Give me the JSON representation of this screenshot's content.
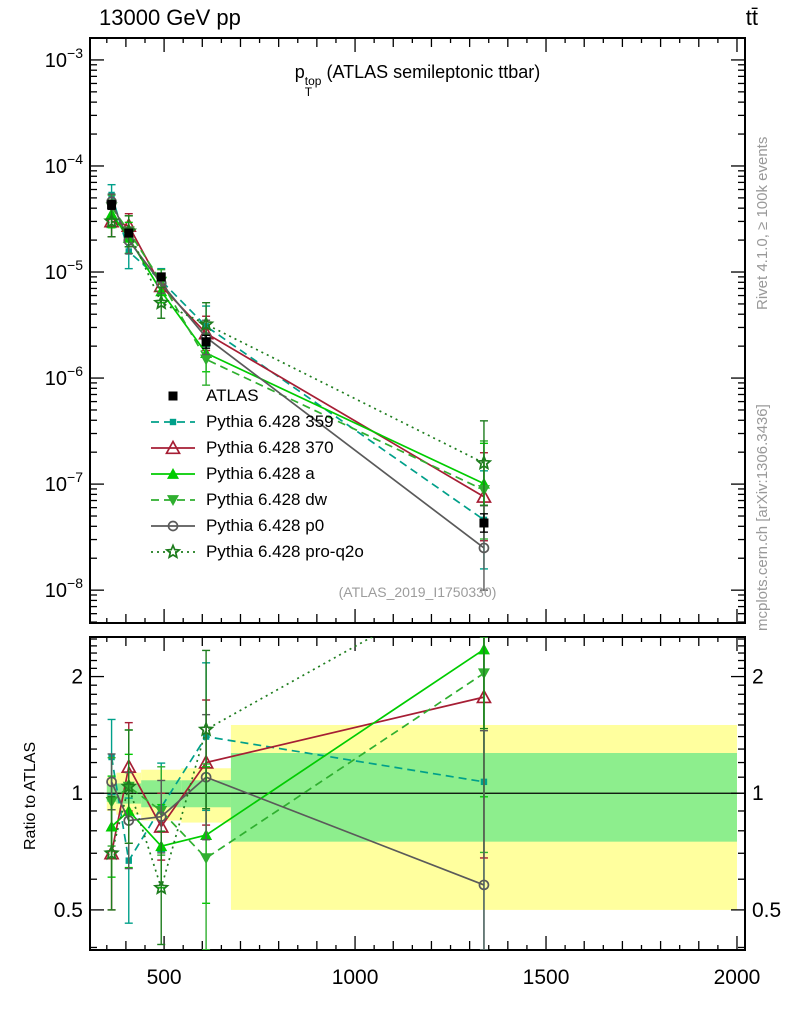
{
  "header": {
    "beam": "13000 GeV pp",
    "process": "tt̄"
  },
  "plot_title": {
    "p": "p",
    "sup": "top",
    "sub": "T",
    "rest": " (ATLAS semileptonic ttbar)"
  },
  "watermark": "(ATLAS_2019_I1750330)",
  "credits": {
    "rivet": "Rivet 4.1.0, ≥ 100k events",
    "mcplots": "mcplots.cern.ch [arXiv:1306.3436]"
  },
  "chart_data": {
    "type": "line",
    "title": "p_T^top (ATLAS semileptonic ttbar)",
    "xlabel": "",
    "x_scale": "linear",
    "xlim": [
      306,
      2021
    ],
    "x_ticks": [
      500,
      1000,
      1500,
      2000
    ],
    "main": {
      "scale": "log",
      "ylim": [
        4.9e-09,
        0.00161
      ],
      "ytick_exponents": [
        -3,
        -4,
        -5,
        -6,
        -7,
        -8
      ]
    },
    "ratio": {
      "scale": "log",
      "ylim": [
        0.394,
        2.53
      ],
      "yticks": [
        2,
        1,
        0.5
      ],
      "ylabel": "Ratio to ATLAS"
    },
    "bin_edges": [
      350,
      375,
      440,
      545,
      675,
      2000
    ],
    "x": [
      362.5,
      407.5,
      492.5,
      610,
      1337.5
    ],
    "bands": {
      "colors": {
        "yellow": "#ffff9e",
        "green": "#8dee8d"
      },
      "yellow": [
        [
          0.9,
          1.1
        ],
        [
          0.88,
          1.13
        ],
        [
          0.85,
          1.15
        ],
        [
          0.84,
          1.16
        ],
        [
          0.5,
          1.5
        ]
      ],
      "green": [
        [
          0.95,
          1.05
        ],
        [
          0.94,
          1.06
        ],
        [
          0.92,
          1.08
        ],
        [
          0.92,
          1.08
        ],
        [
          0.75,
          1.27
        ]
      ]
    },
    "series": [
      {
        "id": "atlas",
        "name": "ATLAS",
        "color": "#000000",
        "marker": "square",
        "line": "none",
        "values": [
          4.3e-05,
          2.33e-05,
          9e-06,
          2.2e-06,
          4.3e-08
        ],
        "ratio": null,
        "err": [
          1.1,
          1.08,
          1.08,
          1.15,
          1.22
        ]
      },
      {
        "id": "p359",
        "name": "Pythia 6.428 359",
        "color": "#00a08a",
        "marker": "square-small",
        "line": "dashed",
        "values": [
          5.33e-05,
          1.56e-05,
          8.28e-06,
          3.08e-06,
          4.6e-08
        ],
        "ratio": [
          1.24,
          0.67,
          0.92,
          1.4,
          1.07
        ],
        "err": [
          1.25,
          1.45,
          1.3,
          1.55,
          2.9
        ]
      },
      {
        "id": "p370",
        "name": "Pythia 6.428 370",
        "color": "#a61e34",
        "marker": "triangle-open",
        "line": "solid",
        "values": [
          3.01e-05,
          2.73e-05,
          7.38e-06,
          2.64e-06,
          7.6e-08
        ],
        "ratio": [
          0.7,
          1.17,
          0.82,
          1.2,
          1.77
        ],
        "err": [
          1.4,
          1.3,
          1.22,
          1.45,
          2.6
        ]
      },
      {
        "id": "pa",
        "name": "Pythia 6.428 a",
        "color": "#00cc00",
        "marker": "triangle",
        "line": "solid",
        "values": [
          3.53e-05,
          2.1e-05,
          6.57e-06,
          1.72e-06,
          1.01e-07
        ],
        "ratio": [
          0.82,
          0.9,
          0.73,
          0.78,
          2.35
        ],
        "err": [
          1.35,
          1.4,
          1.28,
          1.5,
          2.4
        ]
      },
      {
        "id": "pdw",
        "name": "Pythia 6.428 dw",
        "color": "#2faf2f",
        "marker": "triangle-down",
        "line": "dashed",
        "values": [
          4.09e-05,
          2.42e-05,
          8.1e-06,
          1.5e-06,
          8.8e-08
        ],
        "ratio": [
          0.95,
          1.04,
          0.9,
          0.68,
          2.04
        ],
        "err": [
          1.3,
          1.4,
          1.3,
          1.75,
          2.9
        ]
      },
      {
        "id": "pp0",
        "name": "Pythia 6.428 p0",
        "color": "#5a5a5a",
        "marker": "circle-open",
        "line": "solid",
        "values": [
          4.6e-05,
          1.98e-05,
          7.83e-06,
          2.42e-06,
          2.5e-08
        ],
        "ratio": [
          1.07,
          0.85,
          0.87,
          1.1,
          0.58
        ],
        "err": [
          1.18,
          1.33,
          1.24,
          1.45,
          2.5
        ]
      },
      {
        "id": "pq2o",
        "name": "Pythia 6.428 pro-q2o",
        "color": "#1e7d1e",
        "marker": "star-open",
        "line": "dotted",
        "values": [
          3.01e-05,
          2.42e-05,
          5.13e-06,
          3.21e-06,
          1.58e-07
        ],
        "ratio": [
          0.7,
          1.04,
          0.57,
          1.46,
          3.67
        ],
        "err": [
          1.4,
          1.4,
          1.4,
          1.6,
          2.5
        ]
      }
    ]
  }
}
